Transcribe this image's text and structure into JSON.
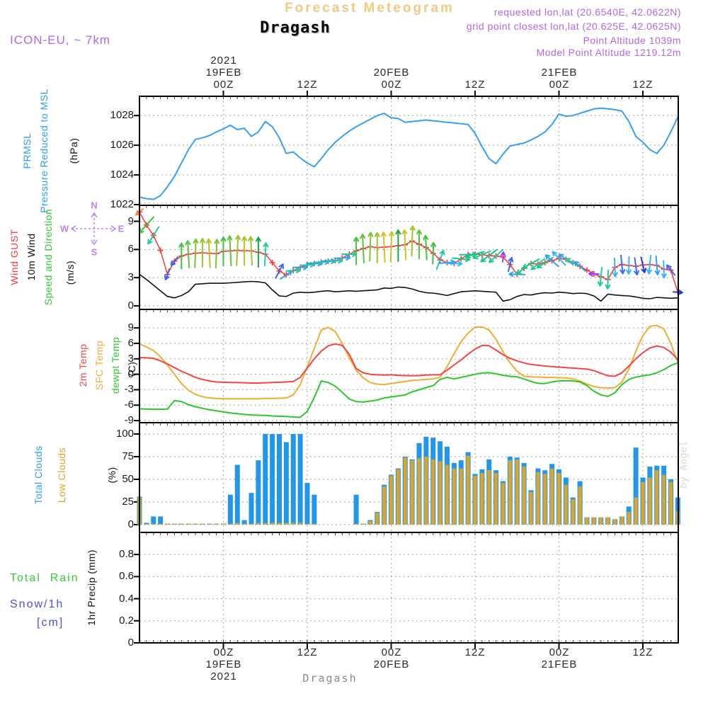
{
  "header": {
    "app_title": "Forecast Meteogram",
    "station": "Dragash",
    "model": "ICON-EU, ~ 7km",
    "requested": "requested lon,lat (20.6540E, 42.0622N)",
    "grid_point": "grid point closest lon,lat (20.625E, 42.0625N)",
    "point_alt": "Point Altitude 1039m",
    "model_alt": "Model Point Altitude 1219.12m"
  },
  "watermark": "by Angel",
  "footer": {
    "station": "Dragash"
  },
  "compass": {
    "n": "N",
    "e": "E",
    "s": "S",
    "w": "W"
  },
  "colors": {
    "purple": "#b266e6",
    "compass_purple": "#bd82f0",
    "title_wheat": "#f3c981",
    "pressure_blue": "#35a0f5",
    "gust_red": "#f23b3b",
    "temp_red": "#f34545",
    "sfc_orange": "#f0ad33",
    "dewpt_green": "#2dc82d",
    "total_clouds_blue": "#2196ea",
    "low_clouds_orange": "#d8a62c",
    "rain_green": "#33cc33",
    "snow_blue": "#4d4de0",
    "wind_black": "#111111",
    "grid_gray": "#9a9a9a",
    "axis_black": "#000000",
    "gray_text": "#8a8a8a",
    "watermark_green": "#cfe0cf"
  },
  "panels": [
    {
      "id": "pressure",
      "ylim": [
        1021.95,
        1029.3
      ],
      "side_labels": [
        {
          "text": "PRMSL",
          "color": "#2b9ff5"
        },
        {
          "text": "Pressure Reduced to MSL",
          "color": "#2b9ff5"
        },
        {
          "text": "(hPa)",
          "color": "#111111"
        }
      ],
      "yticks": [
        {
          "v": 1028,
          "label": "1028"
        },
        {
          "v": 1026,
          "label": "1026"
        },
        {
          "v": 1024,
          "label": "1024"
        },
        {
          "v": 1022,
          "label": "1022"
        }
      ]
    },
    {
      "id": "wind",
      "ylim": [
        -0.38,
        10.7
      ],
      "side_labels": [
        {
          "text": "Wind GUST",
          "color": "#f23b3b"
        },
        {
          "text": "10m Wind",
          "color": "#111111"
        },
        {
          "text": "Speed and Direction",
          "color": "#2dc82d"
        },
        {
          "text": "(m/s)",
          "color": "#111111"
        }
      ],
      "yticks": [
        {
          "v": 9,
          "label": "9"
        },
        {
          "v": 6,
          "label": "6"
        },
        {
          "v": 3,
          "label": "3"
        },
        {
          "v": 0,
          "label": "0"
        }
      ]
    },
    {
      "id": "temp",
      "ylim": [
        -9.4,
        12.6
      ],
      "side_labels": [
        {
          "text": "2m Temp",
          "color": "#f34545"
        },
        {
          "text": "SFC Temp",
          "color": "#f0ad33"
        },
        {
          "text": "dewpt Temp",
          "color": "#2dc82d"
        },
        {
          "text": "(C)",
          "color": "#111111"
        }
      ],
      "yticks": [
        {
          "v": 9,
          "label": "9"
        },
        {
          "v": 6,
          "label": "6"
        },
        {
          "v": 3,
          "label": "3"
        },
        {
          "v": 0,
          "label": "0"
        },
        {
          "v": -3,
          "label": "-3"
        },
        {
          "v": -6,
          "label": "-6"
        },
        {
          "v": -9,
          "label": "-9"
        }
      ]
    },
    {
      "id": "clouds",
      "ylim": [
        -8.6,
        112.5
      ],
      "side_labels": [
        {
          "text": "Total Clouds",
          "color": "#2aa0f0"
        },
        {
          "text": "Low Clouds",
          "color": "#d8a62c"
        },
        {
          "text": "(%)",
          "color": "#111111"
        }
      ],
      "yticks": [
        {
          "v": 100,
          "label": "100"
        },
        {
          "v": 75,
          "label": "75"
        },
        {
          "v": 50,
          "label": "50"
        },
        {
          "v": 25,
          "label": "25"
        },
        {
          "v": 0,
          "label": "0"
        }
      ]
    },
    {
      "id": "precip",
      "ylim": [
        0,
        1.0
      ],
      "side_labels": [
        {
          "text": "1hr Precip (mm)",
          "color": "#111111"
        }
      ],
      "yticks": [
        {
          "v": 0.8,
          "label": "0.8"
        },
        {
          "v": 0.6,
          "label": "0.6"
        },
        {
          "v": 0.4,
          "label": "0.4"
        },
        {
          "v": 0.2,
          "label": "0.2"
        },
        {
          "v": 0,
          "label": "0"
        }
      ]
    }
  ],
  "precip_legend": [
    {
      "text": "Total  Rain",
      "color": "#33cc33"
    },
    {
      "text": "Snow/1h",
      "color": "#4d4de0"
    },
    {
      "text": "[cm]",
      "color": "#4d4de0"
    }
  ],
  "xaxis": {
    "top_ticks": [
      {
        "t": 12,
        "lines": [
          "2021",
          "19FEB",
          "00Z"
        ]
      },
      {
        "t": 24,
        "lines": [
          "12Z"
        ]
      },
      {
        "t": 36,
        "lines": [
          "20FEB",
          "00Z"
        ]
      },
      {
        "t": 48,
        "lines": [
          "12Z"
        ]
      },
      {
        "t": 60,
        "lines": [
          "21FEB",
          "00Z"
        ]
      },
      {
        "t": 72,
        "lines": [
          "12Z"
        ]
      }
    ],
    "bottom_ticks": [
      {
        "t": 12,
        "lines": [
          "00Z",
          "19FEB",
          "2021"
        ]
      },
      {
        "t": 24,
        "lines": [
          "12Z"
        ]
      },
      {
        "t": 36,
        "lines": [
          "00Z",
          "20FEB"
        ]
      },
      {
        "t": 48,
        "lines": [
          "12Z"
        ]
      },
      {
        "t": 60,
        "lines": [
          "00Z",
          "21FEB"
        ]
      },
      {
        "t": 72,
        "lines": [
          "12Z"
        ]
      }
    ]
  },
  "chart_data": {
    "type": "line",
    "subtype": "multi-panel-meteogram",
    "x_unit": "forecast hour (hourly steps, 00Z/12Z ticks labeled 19FEB-21FEB 2021)",
    "n_points": 78,
    "pressure_hpa": [
      1022.5,
      1022.4,
      1022.35,
      1022.6,
      1023.2,
      1023.9,
      1024.8,
      1025.7,
      1026.4,
      1026.5,
      1026.65,
      1026.9,
      1027.1,
      1027.35,
      1027.05,
      1027.15,
      1026.6,
      1026.9,
      1027.6,
      1027.25,
      1026.5,
      1025.45,
      1025.55,
      1025.15,
      1024.8,
      1024.55,
      1025.1,
      1025.7,
      1026.2,
      1026.6,
      1026.95,
      1027.25,
      1027.5,
      1027.75,
      1028.0,
      1028.15,
      1027.85,
      1027.8,
      1027.55,
      1027.6,
      1027.65,
      1027.7,
      1027.65,
      1027.6,
      1027.55,
      1027.5,
      1027.45,
      1027.4,
      1026.8,
      1025.9,
      1025.1,
      1024.75,
      1025.4,
      1025.95,
      1026.05,
      1026.15,
      1026.35,
      1026.6,
      1026.9,
      1027.4,
      1028.1,
      1027.95,
      1028.0,
      1028.15,
      1028.3,
      1028.45,
      1028.5,
      1028.45,
      1028.4,
      1028.3,
      1027.6,
      1026.6,
      1026.2,
      1025.7,
      1025.45,
      1026.0,
      1026.9,
      1027.9
    ],
    "wind_gust_ms": [
      10.0,
      8.6,
      7.5,
      5.9,
      3.35,
      4.75,
      5.3,
      5.5,
      5.6,
      5.65,
      5.6,
      5.55,
      5.8,
      5.85,
      5.9,
      5.85,
      5.85,
      5.7,
      5.5,
      4.6,
      3.7,
      3.3,
      3.75,
      4.1,
      4.35,
      4.5,
      4.65,
      4.75,
      4.8,
      5.1,
      5.5,
      5.85,
      6.1,
      6.3,
      6.2,
      6.25,
      6.3,
      6.4,
      6.5,
      6.9,
      6.55,
      6.2,
      5.6,
      4.9,
      4.6,
      4.5,
      5.0,
      5.45,
      5.5,
      5.45,
      5.35,
      5.3,
      5.2,
      4.4,
      3.35,
      4.0,
      4.5,
      4.45,
      4.6,
      4.8,
      5.05,
      4.95,
      4.6,
      4.2,
      3.8,
      3.4,
      3.1,
      2.8,
      4.1,
      4.4,
      4.3,
      4.2,
      4.35,
      4.4,
      4.3,
      3.9,
      3.8,
      1.45
    ],
    "wind_10m_ms": [
      3.35,
      2.8,
      2.2,
      1.6,
      1.0,
      0.85,
      1.1,
      1.5,
      2.3,
      2.35,
      2.4,
      2.4,
      2.4,
      2.45,
      2.5,
      2.55,
      2.6,
      2.55,
      2.45,
      1.7,
      1.05,
      1.0,
      1.35,
      1.45,
      1.4,
      1.45,
      1.55,
      1.6,
      1.5,
      1.55,
      1.6,
      1.55,
      1.6,
      1.65,
      1.7,
      1.9,
      1.85,
      2.0,
      1.95,
      1.8,
      1.55,
      1.4,
      1.35,
      1.25,
      1.1,
      1.3,
      1.5,
      1.55,
      1.6,
      1.55,
      1.5,
      1.45,
      0.5,
      0.65,
      1.0,
      1.2,
      1.15,
      1.3,
      1.4,
      1.35,
      1.45,
      1.4,
      1.3,
      1.35,
      1.3,
      1.05,
      0.5,
      1.25,
      1.15,
      1.1,
      1.05,
      0.95,
      0.8,
      0.75,
      0.9,
      0.85,
      0.8,
      0.85
    ],
    "temp_2m_c": [
      3.25,
      3.2,
      3.1,
      2.6,
      2.0,
      1.3,
      0.6,
      0.0,
      -0.6,
      -1.0,
      -1.3,
      -1.5,
      -1.55,
      -1.6,
      -1.6,
      -1.65,
      -1.7,
      -1.7,
      -1.65,
      -1.6,
      -1.55,
      -1.5,
      -1.4,
      -0.6,
      1.2,
      3.0,
      4.5,
      5.5,
      5.9,
      5.6,
      3.9,
      1.1,
      0.3,
      0.0,
      -0.1,
      -0.15,
      -0.1,
      -0.2,
      -0.25,
      -0.3,
      -0.25,
      -0.15,
      -0.1,
      -0.1,
      0.8,
      1.8,
      2.8,
      3.9,
      4.9,
      5.6,
      5.55,
      4.7,
      3.8,
      3.1,
      2.6,
      2.2,
      1.9,
      1.75,
      1.6,
      1.5,
      1.4,
      1.3,
      1.2,
      1.1,
      1.0,
      0.7,
      0.2,
      -0.3,
      -0.4,
      0.3,
      1.6,
      3.0,
      4.2,
      5.1,
      5.5,
      5.2,
      4.3,
      2.85
    ],
    "temp_sfc_c": [
      5.9,
      5.3,
      4.6,
      3.4,
      1.8,
      0.0,
      -1.8,
      -3.1,
      -3.9,
      -4.35,
      -4.6,
      -4.7,
      -4.75,
      -4.75,
      -4.75,
      -4.75,
      -4.75,
      -4.75,
      -4.7,
      -4.7,
      -4.65,
      -4.6,
      -4.0,
      -2.0,
      1.5,
      5.0,
      8.6,
      9.1,
      8.3,
      6.0,
      3.2,
      0.8,
      -0.7,
      -1.6,
      -1.9,
      -2.0,
      -1.8,
      -1.6,
      -1.4,
      -1.2,
      -1.1,
      -1.0,
      -0.9,
      -0.6,
      1.5,
      4.0,
      6.3,
      8.0,
      9.15,
      9.2,
      8.6,
      6.8,
      4.4,
      2.2,
      0.6,
      -0.4,
      -0.5,
      -0.55,
      -0.6,
      -0.6,
      -0.65,
      -0.7,
      -0.9,
      -1.3,
      -1.9,
      -2.4,
      -2.6,
      -2.7,
      -2.6,
      -1.5,
      1.0,
      4.5,
      7.5,
      9.3,
      9.5,
      8.8,
      6.0,
      2.2
    ],
    "dewpoint_c": [
      -6.7,
      -6.75,
      -6.8,
      -6.8,
      -6.75,
      -5.1,
      -5.3,
      -5.9,
      -6.3,
      -6.6,
      -6.9,
      -7.1,
      -7.3,
      -7.5,
      -7.65,
      -7.8,
      -7.9,
      -7.95,
      -8.0,
      -8.1,
      -8.15,
      -8.2,
      -8.3,
      -8.35,
      -7.2,
      -4.5,
      -1.3,
      -1.6,
      -2.3,
      -3.5,
      -4.8,
      -5.3,
      -5.4,
      -5.2,
      -5.0,
      -4.6,
      -4.4,
      -4.2,
      -4.0,
      -3.4,
      -3.0,
      -2.6,
      -2.2,
      -1.0,
      -0.6,
      -0.9,
      -0.6,
      -0.3,
      0.0,
      0.25,
      0.3,
      0.1,
      -0.2,
      -0.4,
      -0.5,
      -0.9,
      -1.4,
      -1.75,
      -1.8,
      -1.5,
      -1.3,
      -1.25,
      -1.3,
      -1.5,
      -2.2,
      -3.3,
      -4.0,
      -4.3,
      -3.6,
      -2.0,
      -1.0,
      -0.55,
      -0.3,
      -0.1,
      0.3,
      0.9,
      1.7,
      2.2
    ],
    "total_clouds_pct": [
      31,
      2,
      9,
      9,
      1,
      1,
      1,
      1,
      1,
      1,
      1,
      1,
      1,
      33,
      66,
      5,
      35,
      71,
      100,
      100,
      100,
      91,
      100,
      100,
      46,
      33,
      0,
      0,
      0,
      0,
      0,
      33,
      1,
      5,
      14,
      44,
      55,
      62,
      75,
      72,
      90,
      97,
      96,
      92,
      86,
      68,
      71,
      80,
      56,
      61,
      72,
      60,
      48,
      75,
      74,
      68,
      38,
      62,
      60,
      67,
      61,
      52,
      30,
      48,
      8,
      8,
      8,
      8,
      6,
      9,
      20,
      85,
      52,
      64,
      65,
      65,
      50,
      30
    ],
    "low_clouds_pct": [
      31,
      1,
      1,
      1,
      1,
      1,
      1,
      1,
      1,
      1,
      1,
      1,
      1,
      1,
      2,
      1,
      1,
      2,
      2,
      2,
      2,
      2,
      2,
      2,
      1,
      1,
      0,
      0,
      0,
      0,
      0,
      1,
      1,
      4,
      13,
      42,
      54,
      61,
      74,
      71,
      73,
      75,
      72,
      70,
      66,
      62,
      62,
      76,
      54,
      57,
      60,
      57,
      46,
      71,
      72,
      64,
      36,
      58,
      56,
      62,
      57,
      44,
      28,
      42,
      8,
      8,
      8,
      8,
      6,
      9,
      14,
      30,
      47,
      52,
      60,
      55,
      47,
      15
    ],
    "precip_1hr_mm_all_zero": true,
    "snow_1h_cm_all_zero": true,
    "wind_arrows_t_dirdeg_color_len": [
      [
        0,
        230,
        "#f0922e",
        13
      ],
      [
        1,
        222,
        "#3cc43c",
        30
      ],
      [
        2,
        212,
        "#27c8a0",
        28
      ],
      [
        4,
        200,
        "#3b6af5",
        16
      ],
      [
        5,
        218,
        "#3b6af5",
        15
      ],
      [
        6,
        0,
        "#3cc43c",
        36
      ],
      [
        7,
        357,
        "#5cc43a",
        38
      ],
      [
        8,
        2,
        "#7cc431",
        40
      ],
      [
        9,
        0,
        "#9cc42c",
        40
      ],
      [
        10,
        357,
        "#b4c428",
        40
      ],
      [
        11,
        2,
        "#7cc431",
        40
      ],
      [
        12,
        0,
        "#3cc43c",
        40
      ],
      [
        13,
        357,
        "#5cc43a",
        42
      ],
      [
        14,
        3,
        "#9cc42c",
        42
      ],
      [
        15,
        0,
        "#b4c428",
        40
      ],
      [
        16,
        357,
        "#9cc42c",
        40
      ],
      [
        17,
        0,
        "#18a448",
        42
      ],
      [
        18,
        3,
        "#27c8a0",
        32
      ],
      [
        20,
        28,
        "#3b6af5",
        22
      ],
      [
        21,
        55,
        "#2aa6f0",
        20
      ],
      [
        22,
        88,
        "#27c8a0",
        20
      ],
      [
        23,
        90,
        "#2aa6f0",
        20
      ],
      [
        24,
        86,
        "#27c8a0",
        20
      ],
      [
        25,
        92,
        "#2aa6f0",
        22
      ],
      [
        26,
        88,
        "#27c8a0",
        22
      ],
      [
        27,
        90,
        "#2aa6f0",
        20
      ],
      [
        28,
        92,
        "#27c8a0",
        20
      ],
      [
        29,
        88,
        "#2aa6f0",
        22
      ],
      [
        30,
        90,
        "#27c8a0",
        20
      ],
      [
        31,
        0,
        "#3cc43c",
        38
      ],
      [
        32,
        357,
        "#5cc43a",
        40
      ],
      [
        33,
        2,
        "#7cc431",
        40
      ],
      [
        34,
        0,
        "#9cc42c",
        42
      ],
      [
        35,
        357,
        "#d8c02a",
        42
      ],
      [
        36,
        2,
        "#c8c428",
        42
      ],
      [
        37,
        0,
        "#18a448",
        44
      ],
      [
        38,
        357,
        "#c8c428",
        42
      ],
      [
        39,
        2,
        "#9cc42c",
        42
      ],
      [
        40,
        0,
        "#5cc43a",
        40
      ],
      [
        41,
        357,
        "#3cc43c",
        34
      ],
      [
        42,
        2,
        "#3cc43c",
        30
      ],
      [
        43,
        20,
        "#27c8a0",
        28
      ],
      [
        44,
        85,
        "#2aa6f0",
        22
      ],
      [
        45,
        92,
        "#3cb4f8",
        22
      ],
      [
        46,
        95,
        "#14c88c",
        24
      ],
      [
        47,
        90,
        "#14c88c",
        24
      ],
      [
        48,
        255,
        "#14c88c",
        26
      ],
      [
        49,
        247,
        "#27c8a0",
        26
      ],
      [
        50,
        233,
        "#14c88c",
        28
      ],
      [
        51,
        227,
        "#27c8a0",
        26
      ],
      [
        52,
        4,
        "#9a46ee",
        14
      ],
      [
        53,
        14,
        "#3b6af5",
        20
      ],
      [
        54,
        272,
        "#2aa6f0",
        22
      ],
      [
        55,
        232,
        "#14c88c",
        26
      ],
      [
        56,
        241,
        "#14c88c",
        26
      ],
      [
        57,
        231,
        "#27c8a0",
        24
      ],
      [
        58,
        237,
        "#14c88c",
        26
      ],
      [
        59,
        311,
        "#2aa6f0",
        24
      ],
      [
        60,
        316,
        "#3cb4f8",
        26
      ],
      [
        61,
        306,
        "#2aa6f0",
        24
      ],
      [
        62,
        300,
        "#27c8a0",
        22
      ],
      [
        63,
        311,
        "#2aa6f0",
        20
      ],
      [
        65,
        272,
        "#9a46ee",
        14
      ],
      [
        66,
        186,
        "#27c8a0",
        26
      ],
      [
        67,
        182,
        "#27c8a0",
        26
      ],
      [
        68,
        178,
        "#3cb4f8",
        26
      ],
      [
        69,
        174,
        "#3b6af5",
        26
      ],
      [
        70,
        181,
        "#3cb4f8",
        24
      ],
      [
        71,
        172,
        "#3b6af5",
        24
      ],
      [
        72,
        167,
        "#2a3ad8",
        22
      ],
      [
        73,
        186,
        "#3cb4f8",
        26
      ],
      [
        74,
        175,
        "#2aa6f0",
        26
      ],
      [
        75,
        178,
        "#3cb4f8",
        24
      ],
      [
        76,
        321,
        "#3b6af5",
        18
      ],
      [
        77,
        94,
        "#2a3ad8",
        13
      ]
    ]
  }
}
